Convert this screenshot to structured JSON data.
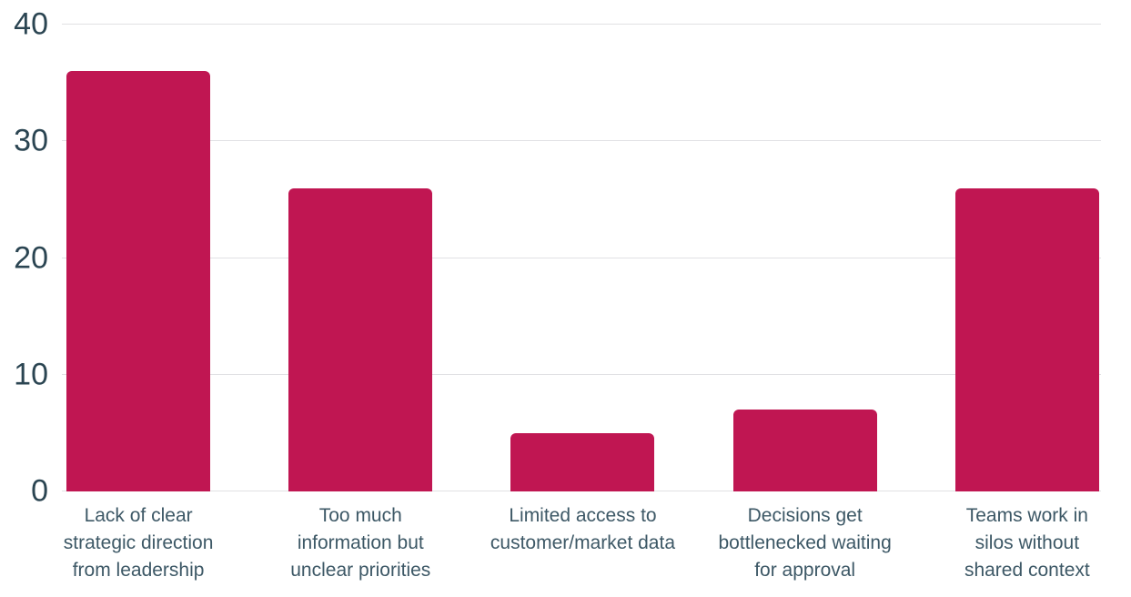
{
  "chart_data": {
    "type": "bar",
    "title": "",
    "xlabel": "",
    "ylabel": "",
    "categories": [
      "Lack of clear strategic direction from leadership",
      "Too much information but unclear priorities",
      "Limited access to customer/market data",
      "Decisions get bottlenecked waiting for approval",
      "Teams work in silos without shared context"
    ],
    "category_lines": [
      [
        "Lack of clear",
        "strategic direction",
        "from leadership"
      ],
      [
        "Too much",
        "information but",
        "unclear priorities"
      ],
      [
        "Limited access to",
        "customer/market data"
      ],
      [
        "Decisions get",
        "bottlenecked waiting",
        "for approval"
      ],
      [
        "Teams work in",
        "silos without",
        "shared context"
      ]
    ],
    "values": [
      36,
      26,
      5,
      7,
      26
    ],
    "ylim": [
      0,
      40
    ],
    "yticks": [
      0,
      10,
      20,
      30,
      40
    ],
    "grid": true,
    "legend": false,
    "colors": {
      "bar": "#c01652",
      "ytick_label": "#2b4552",
      "xtick_label": "#3d5866",
      "gridline": "#e1e1e4",
      "background": "#ffffff"
    }
  }
}
